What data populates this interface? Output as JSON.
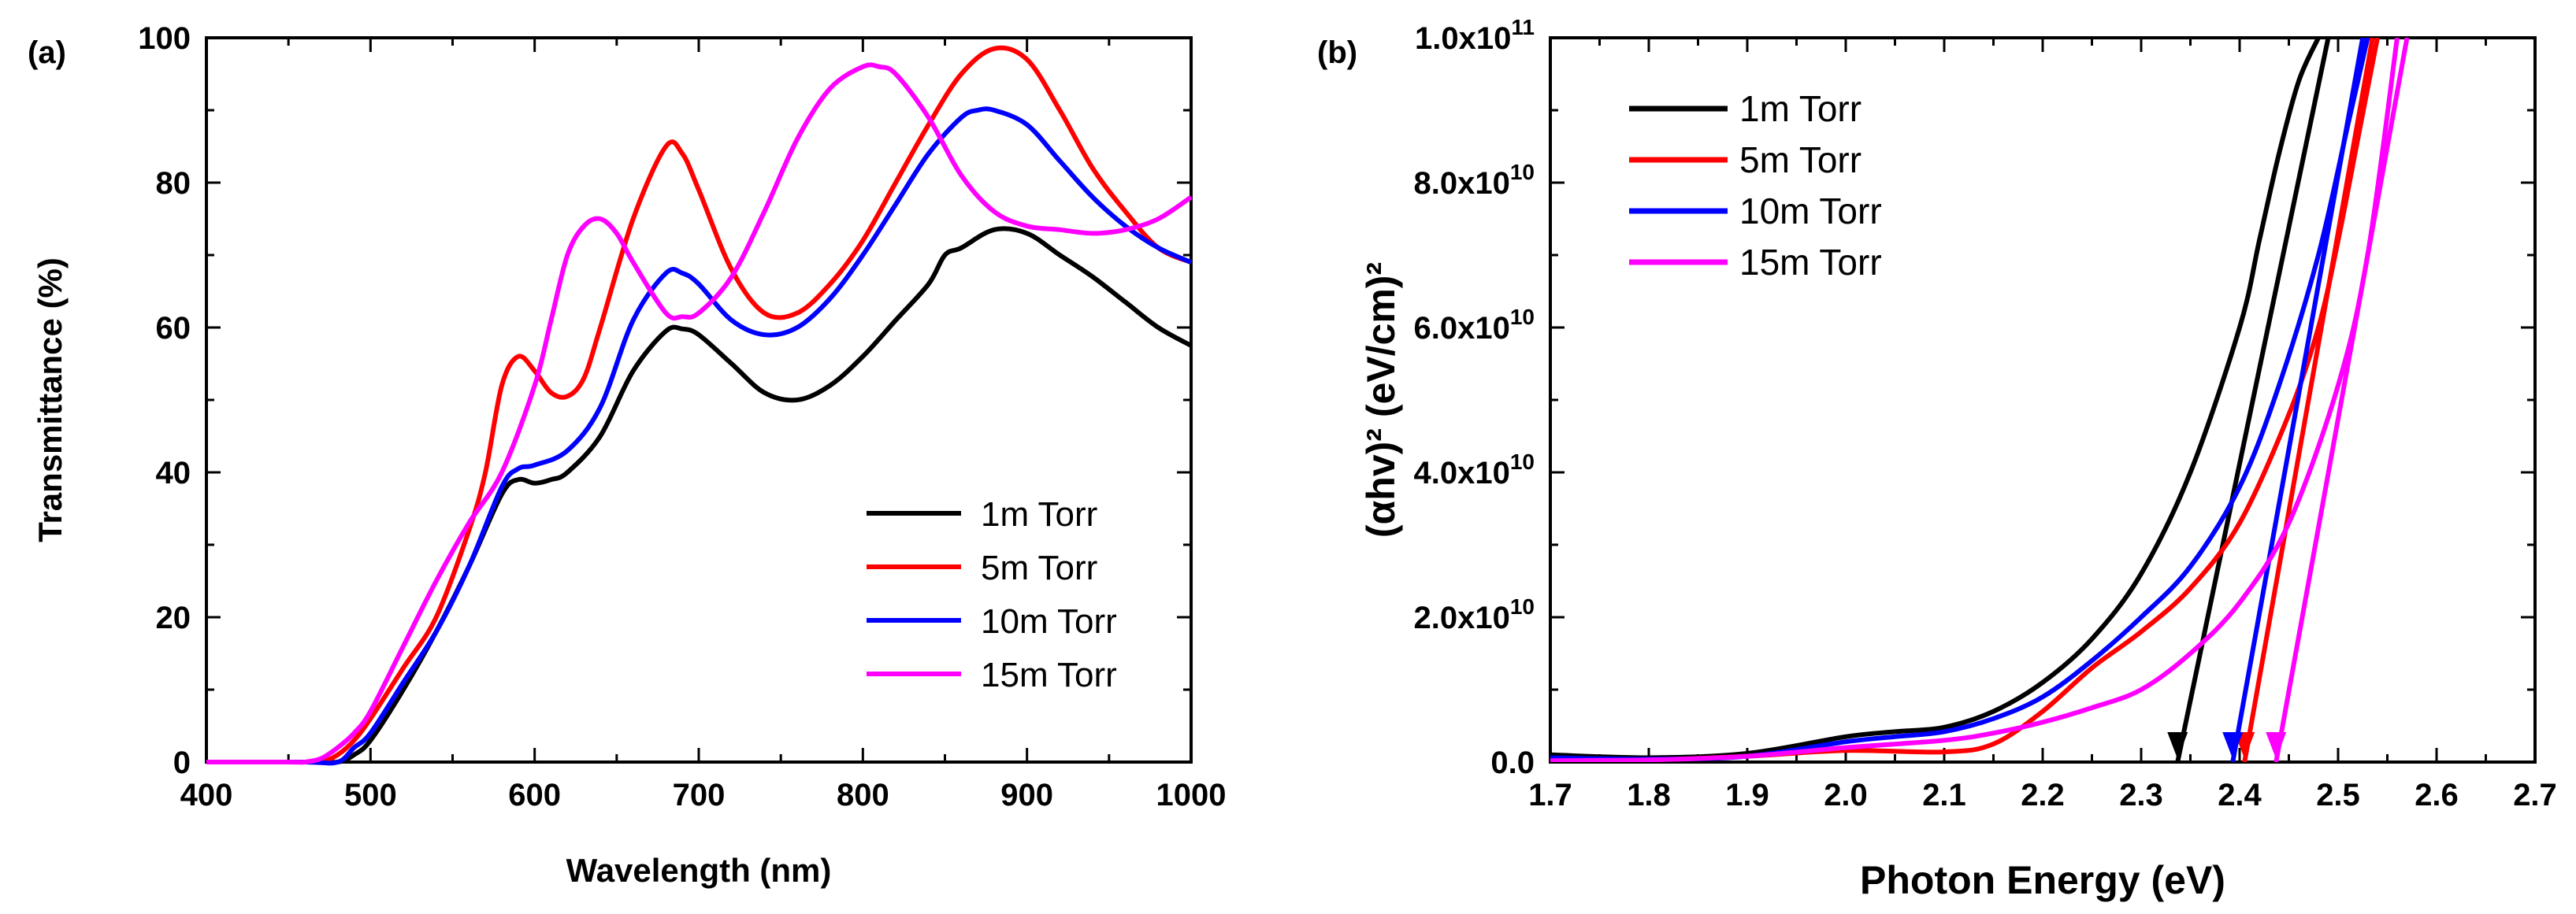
{
  "chart_data": [
    {
      "type": "line",
      "panel_label": "(a)",
      "xlabel": "Wavelength (nm)",
      "ylabel": "Transmittance (%)",
      "xlim": [
        400,
        1000
      ],
      "ylim": [
        0,
        100
      ],
      "xticks": [
        400,
        500,
        600,
        700,
        800,
        900,
        1000
      ],
      "yticks": [
        0,
        20,
        40,
        60,
        80,
        100
      ],
      "legend_position": "bottom-right",
      "series": [
        {
          "name": "1m Torr",
          "color": "#000000",
          "x": [
            400,
            460,
            480,
            490,
            500,
            520,
            540,
            560,
            580,
            590,
            600,
            610,
            620,
            640,
            660,
            680,
            690,
            700,
            720,
            740,
            760,
            780,
            800,
            820,
            840,
            850,
            860,
            880,
            900,
            920,
            940,
            960,
            980,
            1000
          ],
          "y": [
            0,
            0,
            0,
            1,
            3,
            10,
            18,
            27,
            37,
            39,
            38.5,
            39,
            40,
            45,
            54,
            59.5,
            59.8,
            59,
            55,
            51,
            50,
            52,
            56,
            61,
            66,
            70,
            71,
            73.5,
            73,
            70,
            67,
            63.5,
            60,
            57.5
          ]
        },
        {
          "name": "5m Torr",
          "color": "#ff0000",
          "x": [
            400,
            460,
            470,
            480,
            490,
            500,
            520,
            540,
            560,
            570,
            580,
            590,
            600,
            610,
            620,
            630,
            640,
            660,
            680,
            690,
            700,
            720,
            740,
            760,
            780,
            800,
            820,
            840,
            860,
            880,
            900,
            920,
            940,
            960,
            980,
            1000
          ],
          "y": [
            0,
            0,
            0,
            1,
            3,
            6,
            13,
            20,
            32,
            40,
            52,
            56,
            54,
            51,
            50.5,
            53,
            60,
            75,
            85,
            84,
            79,
            68,
            62,
            62,
            66,
            72,
            80,
            88,
            95,
            98.5,
            97,
            90,
            82,
            76,
            71,
            69
          ]
        },
        {
          "name": "10m Torr",
          "color": "#0000ff",
          "x": [
            400,
            460,
            480,
            490,
            500,
            520,
            540,
            560,
            580,
            590,
            600,
            620,
            640,
            660,
            680,
            690,
            700,
            720,
            740,
            760,
            780,
            800,
            820,
            840,
            860,
            870,
            880,
            900,
            920,
            940,
            960,
            980,
            1000
          ],
          "y": [
            0,
            0,
            0,
            2,
            4,
            11,
            18,
            27,
            38,
            40.5,
            41,
            43,
            49,
            61,
            67.5,
            67.5,
            66,
            61,
            59,
            60,
            64,
            70,
            77,
            84,
            89,
            90,
            90,
            88,
            83,
            78,
            74,
            71,
            69
          ]
        },
        {
          "name": "15m Torr",
          "color": "#ff00ff",
          "x": [
            400,
            450,
            460,
            470,
            480,
            490,
            500,
            520,
            540,
            560,
            580,
            600,
            610,
            620,
            630,
            640,
            650,
            660,
            680,
            690,
            700,
            720,
            740,
            760,
            780,
            800,
            810,
            820,
            840,
            860,
            880,
            900,
            920,
            940,
            960,
            980,
            1000
          ],
          "y": [
            0,
            0,
            0,
            0.5,
            2,
            4,
            7,
            16,
            25,
            33,
            40,
            52,
            61,
            70,
            74,
            75,
            73,
            69,
            62,
            61.5,
            62,
            67,
            76,
            86,
            93,
            96,
            96,
            95,
            89,
            81,
            76,
            74,
            73.5,
            73,
            73.5,
            75,
            78
          ]
        }
      ]
    },
    {
      "type": "line",
      "panel_label": "(b)",
      "xlabel": "Photon Energy (eV)",
      "ylabel": "(αhv)² (eV/cm)²",
      "xlim": [
        1.7,
        2.7
      ],
      "ylim": [
        0,
        100000000000.0
      ],
      "xticks": [
        "1.7",
        "1.8",
        "1.9",
        "2.0",
        "2.1",
        "2.2",
        "2.3",
        "2.4",
        "2.5",
        "2.6",
        "2.7"
      ],
      "yticks": [
        "0.0",
        "2.0x10",
        "4.0x10",
        "6.0x10",
        "8.0x10",
        "1.0x10"
      ],
      "ytick_values": [
        0,
        20000000000.0,
        40000000000.0,
        60000000000.0,
        80000000000.0,
        100000000000.0
      ],
      "ytick_exponents": [
        "",
        "10",
        "10",
        "10",
        "10",
        "11"
      ],
      "legend_position": "top-left",
      "series": [
        {
          "name": "1m Torr",
          "color": "#000000",
          "x": [
            1.7,
            1.8,
            1.9,
            2.0,
            2.05,
            2.1,
            2.15,
            2.2,
            2.25,
            2.3,
            2.35,
            2.4,
            2.42,
            2.44,
            2.46,
            2.48
          ],
          "y": [
            1000000000.0,
            600000000.0,
            1200000000.0,
            3500000000.0,
            4200000000.0,
            4800000000.0,
            7000000000.0,
            11000000000.0,
            17000000000.0,
            26000000000.0,
            40000000000.0,
            60000000000.0,
            72000000000.0,
            84000000000.0,
            94000000000.0,
            100000000000.0
          ],
          "tangent": [
            [
              2.337,
              0
            ],
            [
              2.49,
              100000000000.0
            ]
          ],
          "arrow_x": 2.337
        },
        {
          "name": "5m Torr",
          "color": "#ff0000",
          "x": [
            1.7,
            1.8,
            1.9,
            2.0,
            2.1,
            2.15,
            2.2,
            2.25,
            2.3,
            2.35,
            2.4,
            2.45,
            2.48,
            2.5,
            2.52,
            2.54
          ],
          "y": [
            400000000.0,
            300000000.0,
            800000000.0,
            1600000000.0,
            1400000000.0,
            2500000000.0,
            7000000000.0,
            13000000000.0,
            18000000000.0,
            24000000000.0,
            33000000000.0,
            48000000000.0,
            60000000000.0,
            72000000000.0,
            86000000000.0,
            100000000000.0
          ],
          "tangent": [
            [
              2.405,
              0
            ],
            [
              2.535,
              100000000000.0
            ]
          ],
          "arrow_x": 2.405
        },
        {
          "name": "10m Torr",
          "color": "#0000ff",
          "x": [
            1.7,
            1.8,
            1.9,
            2.0,
            2.05,
            2.1,
            2.15,
            2.2,
            2.25,
            2.3,
            2.35,
            2.4,
            2.44,
            2.48,
            2.51,
            2.53
          ],
          "y": [
            600000000.0,
            400000000.0,
            800000000.0,
            2800000000.0,
            3500000000.0,
            4200000000.0,
            6000000000.0,
            9000000000.0,
            14000000000.0,
            20000000000.0,
            27000000000.0,
            38000000000.0,
            52000000000.0,
            70000000000.0,
            88000000000.0,
            100000000000.0
          ],
          "tangent": [
            [
              2.393,
              0
            ],
            [
              2.525,
              100000000000.0
            ]
          ],
          "arrow_x": 2.393
        },
        {
          "name": "15m Torr",
          "color": "#ff00ff",
          "x": [
            1.7,
            1.8,
            1.9,
            2.0,
            2.1,
            2.15,
            2.2,
            2.25,
            2.3,
            2.35,
            2.4,
            2.45,
            2.5,
            2.53,
            2.56
          ],
          "y": [
            200000000.0,
            300000000.0,
            800000000.0,
            2000000000.0,
            3000000000.0,
            4000000000.0,
            5500000000.0,
            7500000000.0,
            10000000000.0,
            15000000000.0,
            22000000000.0,
            33000000000.0,
            52000000000.0,
            70000000000.0,
            100000000000.0
          ],
          "tangent": [
            [
              2.437,
              0
            ],
            [
              2.57,
              100000000000.0
            ]
          ],
          "arrow_x": 2.437
        }
      ]
    }
  ]
}
